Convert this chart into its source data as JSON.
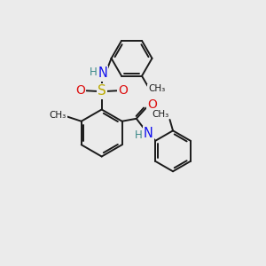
{
  "bg_color": "#ebebeb",
  "bond_color": "#1a1a1a",
  "bond_lw": 1.4,
  "atom_colors": {
    "C": "#1a1a1a",
    "H": "#3a8888",
    "N": "#1010ee",
    "O": "#dd1111",
    "S": "#bbaa00"
  },
  "figsize": [
    3.0,
    3.0
  ],
  "dpi": 100,
  "xlim": [
    0,
    10
  ],
  "ylim": [
    0,
    10
  ]
}
